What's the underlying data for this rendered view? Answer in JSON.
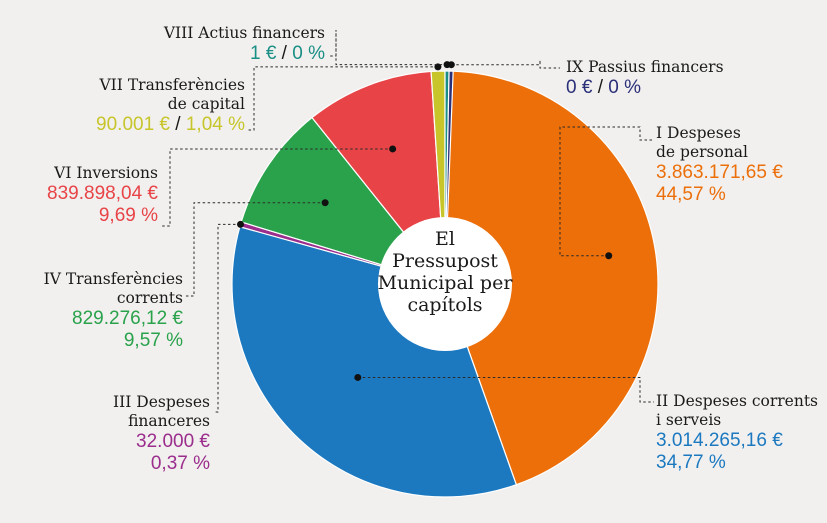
{
  "chart_data": {
    "type": "pie",
    "title": "El\nPressupost\nMunicipal per\ncapítols",
    "slices": [
      {
        "name": "I Despeses\nde personal",
        "amount": "3.863.171,65 €",
        "pct_label": "44,57 %",
        "value": 44.57,
        "color": "#ec6f0a"
      },
      {
        "name": "II Despeses corrents\ni serveis",
        "amount": "3.014.265,16  €",
        "pct_label": "34,77 %",
        "value": 34.77,
        "color": "#1c79c0"
      },
      {
        "name": "III Despeses\nfinanceres",
        "amount": "32.000 €",
        "pct_label": "0,37 %",
        "value": 0.37,
        "color": "#9b2d8c"
      },
      {
        "name": "IV Transferències\ncorrents",
        "amount": "829.276,12 €",
        "pct_label": "9,57 %",
        "value": 9.57,
        "color": "#2aa24b"
      },
      {
        "name": "VI Inversions",
        "amount": "839.898,04 €",
        "pct_label": "9,69 %",
        "value": 9.69,
        "color": "#e84447"
      },
      {
        "name": "VII Transferències\nde capital",
        "amount": "90.001 €",
        "pct_label": "1,04 %",
        "value": 1.04,
        "color": "#c7c52a"
      },
      {
        "name": "VIII Actius financers",
        "amount": "1 €",
        "pct_label": "0 %",
        "value": 0,
        "color": "#1a8f85"
      },
      {
        "name": "IX Passius financers",
        "amount": "0 €",
        "pct_label": "0 %",
        "value": 0,
        "color": "#2b2f78"
      }
    ]
  }
}
